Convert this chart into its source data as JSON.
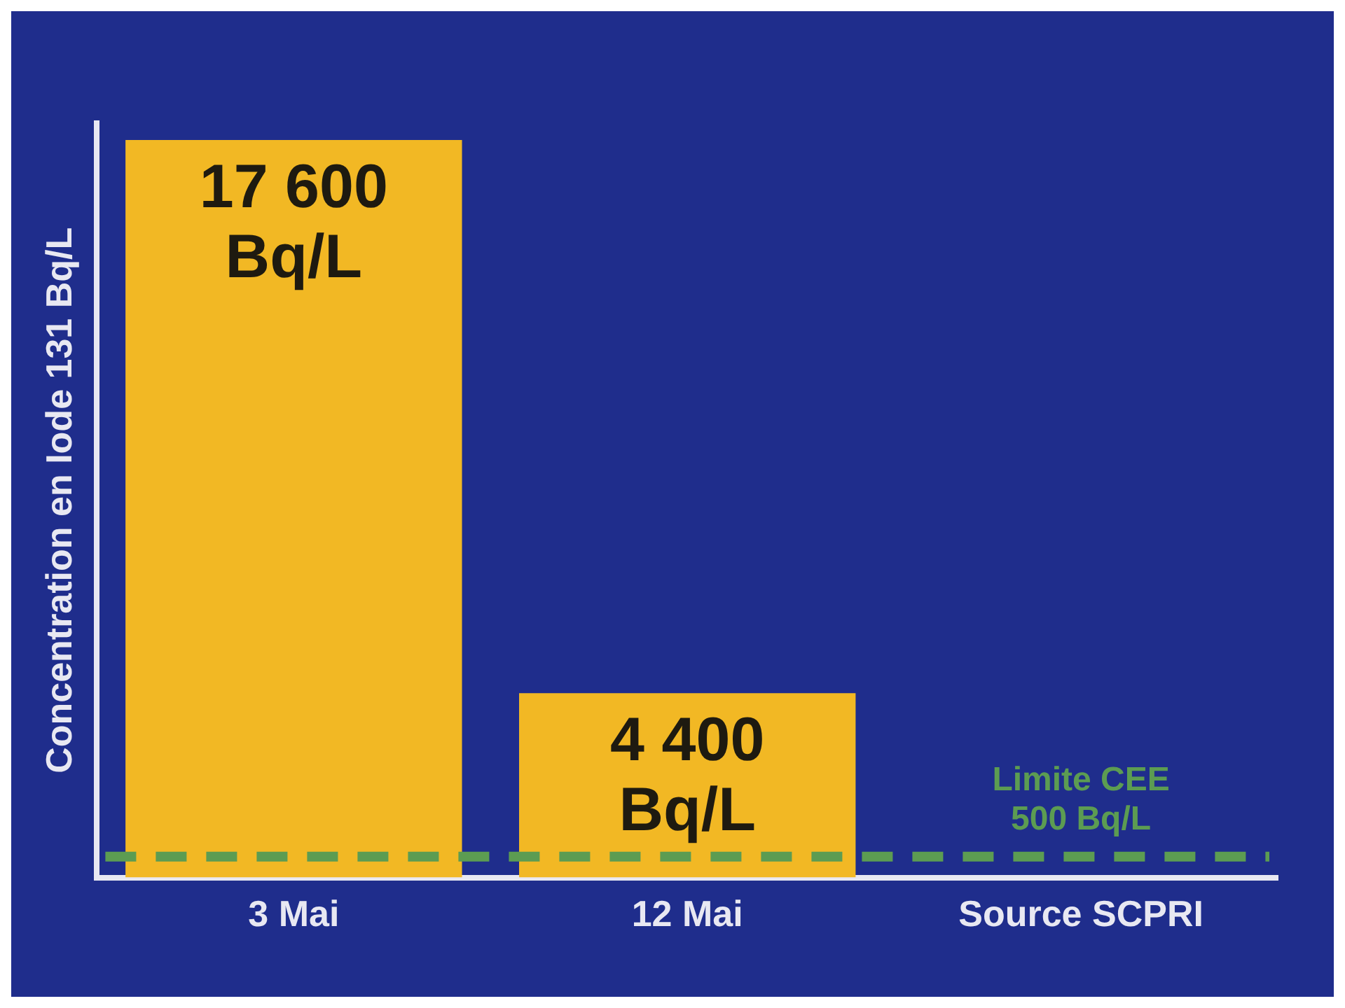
{
  "chart_data": {
    "type": "bar",
    "categories": [
      "3 Mai",
      "12 Mai",
      "Source SCPRI"
    ],
    "values": [
      17600,
      4400,
      null
    ],
    "color": "#f2b824",
    "value_labels": [
      "17 600\nBq/L",
      "4 400\nBq/L",
      null
    ],
    "ylabel": "Concentration en Iode 131 Bq/L",
    "tick_labels": "x",
    "ref_lines": [
      {
        "axis": "y",
        "value": 500,
        "label": "Limite CEE\n500 Bq/L",
        "color": "#5c9c52",
        "line_style": "dashed"
      }
    ]
  }
}
